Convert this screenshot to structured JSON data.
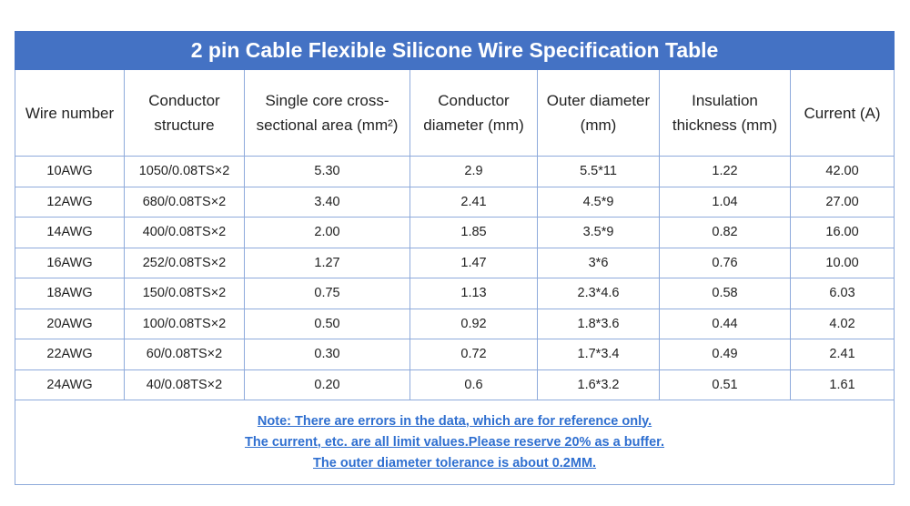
{
  "table": {
    "title": "2 pin Cable Flexible Silicone Wire Specification Table",
    "headers": [
      "Wire number",
      "Conductor structure",
      "Single core cross-sectional area (mm²)",
      "Conductor diameter (mm)",
      "Outer diameter (mm)",
      "Insulation thickness (mm)",
      "Current (A)"
    ],
    "rows": [
      [
        "10AWG",
        "1050/0.08TS×2",
        "5.30",
        "2.9",
        "5.5*11",
        "1.22",
        "42.00"
      ],
      [
        "12AWG",
        "680/0.08TS×2",
        "3.40",
        "2.41",
        "4.5*9",
        "1.04",
        "27.00"
      ],
      [
        "14AWG",
        "400/0.08TS×2",
        "2.00",
        "1.85",
        "3.5*9",
        "0.82",
        "16.00"
      ],
      [
        "16AWG",
        "252/0.08TS×2",
        "1.27",
        "1.47",
        "3*6",
        "0.76",
        "10.00"
      ],
      [
        "18AWG",
        "150/0.08TS×2",
        "0.75",
        "1.13",
        "2.3*4.6",
        "0.58",
        "6.03"
      ],
      [
        "20AWG",
        "100/0.08TS×2",
        "0.50",
        "0.92",
        "1.8*3.6",
        "0.44",
        "4.02"
      ],
      [
        "22AWG",
        "60/0.08TS×2",
        "0.30",
        "0.72",
        "1.7*3.4",
        "0.49",
        "2.41"
      ],
      [
        "24AWG",
        "40/0.08TS×2",
        "0.20",
        "0.6",
        "1.6*3.2",
        "0.51",
        "1.61"
      ]
    ],
    "notes": [
      "Note: There are errors in the data, which are for reference only.",
      "The current, etc. are all limit values.Please reserve 20% as a buffer.",
      "The outer diameter tolerance is about 0.2MM."
    ]
  }
}
